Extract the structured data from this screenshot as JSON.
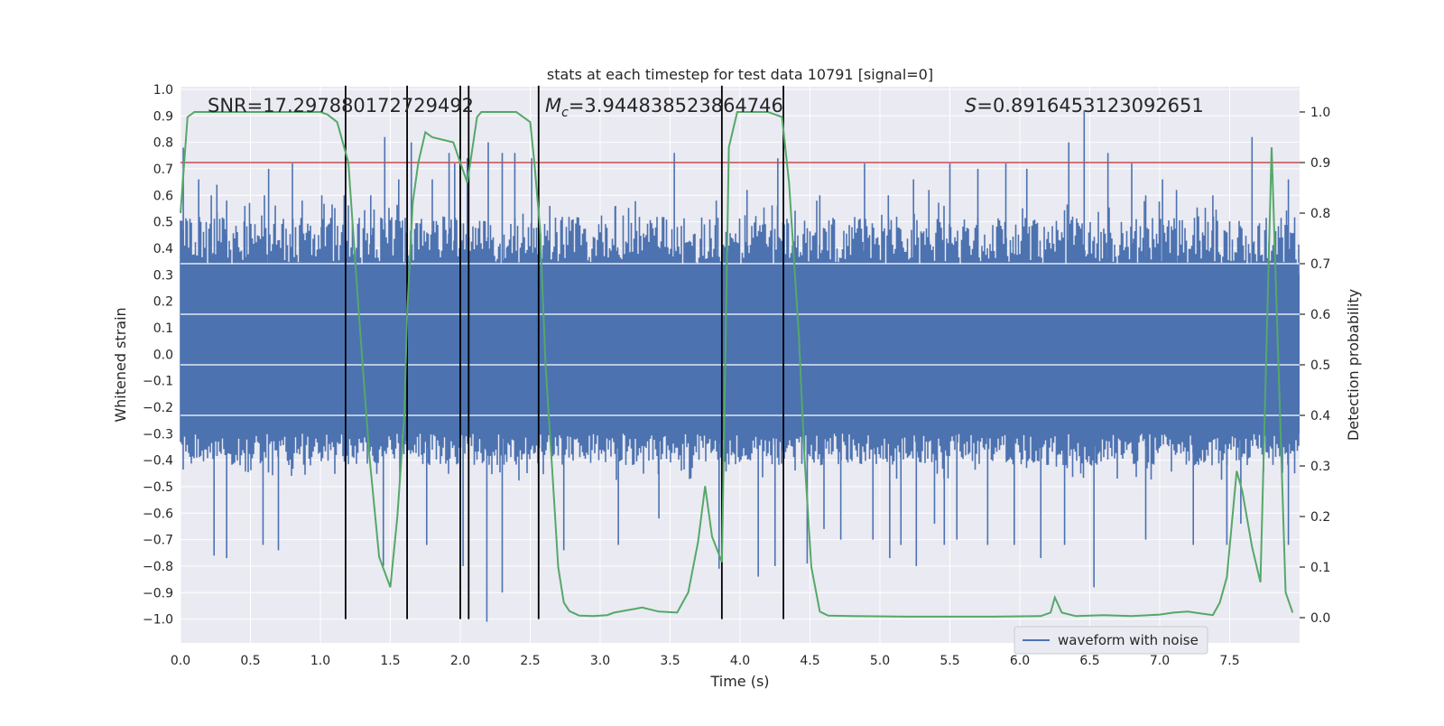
{
  "chart_data": {
    "type": "line",
    "title": "stats at each timestep for test data 10791 [signal=0]",
    "xlabel": "Time (s)",
    "ylabel": "Whitened strain",
    "y2label": "Detection probability",
    "xlim": [
      0.0,
      8.0
    ],
    "ylim": [
      -1.09,
      1.01
    ],
    "y2lim": [
      -0.05,
      1.05
    ],
    "xticks": [
      0.0,
      0.5,
      1.0,
      1.5,
      2.0,
      2.5,
      3.0,
      3.5,
      4.0,
      4.5,
      5.0,
      5.5,
      6.0,
      6.5,
      7.0,
      7.5
    ],
    "xtick_labels": [
      "0.0",
      "0.5",
      "1.0",
      "1.5",
      "2.0",
      "2.5",
      "3.0",
      "3.5",
      "4.0",
      "4.5",
      "5.0",
      "5.5",
      "6.0",
      "6.5",
      "7.0",
      "7.5"
    ],
    "yticks": [
      1.0,
      0.9,
      0.8,
      0.7,
      0.6,
      0.5,
      0.4,
      0.3,
      0.2,
      0.1,
      0.0,
      -0.1,
      -0.2,
      -0.3,
      -0.4,
      -0.5,
      -0.6,
      -0.7,
      -0.8,
      -0.9,
      -1.0
    ],
    "ytick_labels": [
      "1.0",
      "0.9",
      "0.8",
      "0.7",
      "0.6",
      "0.5",
      "0.4",
      "0.3",
      "0.2",
      "0.1",
      "0.0",
      "−0.1",
      "−0.2",
      "−0.3",
      "−0.4",
      "−0.5",
      "−0.6",
      "−0.7",
      "−0.8",
      "−0.9",
      "−1.0"
    ],
    "y2ticks": [
      1.0,
      0.9,
      0.8,
      0.7,
      0.6,
      0.5,
      0.4,
      0.3,
      0.2,
      0.1,
      0.0
    ],
    "y2tick_labels": [
      "1.0",
      "0.9",
      "0.8",
      "0.7",
      "0.6",
      "0.5",
      "0.4",
      "0.3",
      "0.2",
      "0.1",
      "0.0"
    ],
    "annotations": {
      "snr": "SNR=17.297880172729492",
      "mc_prefix": "M",
      "mc_sub": "c",
      "mc_value": "=3.944838523864746",
      "s_prefix": "S",
      "s_value": "=0.8916453123092651"
    },
    "legend": {
      "label": "waveform with noise",
      "placement": "lower-right"
    },
    "waveform": {
      "name": "waveform with noise",
      "color": "#4c72b0",
      "core_range": [
        -0.42,
        0.52
      ],
      "spikes_up": [
        [
          0.02,
          0.78
        ],
        [
          0.13,
          0.66
        ],
        [
          0.22,
          0.6
        ],
        [
          0.26,
          0.64
        ],
        [
          0.33,
          0.58
        ],
        [
          0.46,
          0.56
        ],
        [
          0.6,
          0.6
        ],
        [
          0.63,
          0.7
        ],
        [
          0.8,
          0.72
        ],
        [
          0.87,
          0.58
        ],
        [
          1.01,
          0.6
        ],
        [
          1.17,
          0.6
        ],
        [
          1.36,
          0.6
        ],
        [
          1.46,
          0.82
        ],
        [
          1.56,
          0.66
        ],
        [
          1.65,
          0.8
        ],
        [
          1.8,
          0.66
        ],
        [
          1.92,
          0.76
        ],
        [
          1.96,
          0.72
        ],
        [
          2.05,
          0.74
        ],
        [
          2.2,
          0.8
        ],
        [
          2.3,
          0.76
        ],
        [
          2.39,
          0.76
        ],
        [
          2.51,
          0.74
        ],
        [
          2.64,
          0.56
        ],
        [
          3.11,
          0.56
        ],
        [
          3.53,
          0.76
        ],
        [
          3.83,
          0.58
        ],
        [
          4.05,
          0.62
        ],
        [
          4.27,
          0.74
        ],
        [
          4.57,
          0.6
        ],
        [
          4.89,
          0.72
        ],
        [
          5.06,
          0.6
        ],
        [
          5.24,
          0.66
        ],
        [
          5.35,
          0.62
        ],
        [
          5.5,
          0.72
        ],
        [
          5.7,
          0.7
        ],
        [
          5.9,
          0.72
        ],
        [
          6.05,
          0.7
        ],
        [
          6.35,
          0.8
        ],
        [
          6.46,
          0.92
        ],
        [
          6.63,
          0.76
        ],
        [
          6.8,
          0.72
        ],
        [
          6.9,
          0.6
        ],
        [
          7.02,
          0.66
        ],
        [
          7.12,
          0.62
        ],
        [
          7.38,
          0.6
        ],
        [
          7.66,
          0.82
        ],
        [
          7.92,
          0.66
        ]
      ],
      "spikes_down": [
        [
          0.24,
          -0.76
        ],
        [
          0.33,
          -0.77
        ],
        [
          0.59,
          -0.72
        ],
        [
          0.7,
          -0.74
        ],
        [
          1.18,
          -0.72
        ],
        [
          1.45,
          -0.8
        ],
        [
          1.62,
          -0.74
        ],
        [
          1.76,
          -0.72
        ],
        [
          2.02,
          -0.8
        ],
        [
          2.19,
          -1.01
        ],
        [
          2.3,
          -0.9
        ],
        [
          2.56,
          -0.82
        ],
        [
          2.74,
          -0.74
        ],
        [
          3.13,
          -0.72
        ],
        [
          3.42,
          -0.62
        ],
        [
          3.85,
          -0.81
        ],
        [
          4.13,
          -0.84
        ],
        [
          4.25,
          -0.8
        ],
        [
          4.48,
          -0.79
        ],
        [
          4.6,
          -0.66
        ],
        [
          4.72,
          -0.7
        ],
        [
          4.95,
          -0.7
        ],
        [
          5.07,
          -0.77
        ],
        [
          5.15,
          -0.72
        ],
        [
          5.26,
          -0.8
        ],
        [
          5.39,
          -0.64
        ],
        [
          5.46,
          -0.72
        ],
        [
          5.55,
          -0.7
        ],
        [
          5.77,
          -0.72
        ],
        [
          5.96,
          -0.72
        ],
        [
          6.15,
          -0.77
        ],
        [
          6.32,
          -0.72
        ],
        [
          6.53,
          -0.88
        ],
        [
          6.9,
          -0.7
        ],
        [
          7.24,
          -0.72
        ],
        [
          7.48,
          -0.72
        ],
        [
          7.58,
          -0.64
        ],
        [
          7.92,
          -0.72
        ]
      ]
    },
    "threshold": {
      "y2": 0.9,
      "color": "#c44e52"
    },
    "probability": {
      "name": "Detection probability",
      "color": "#55a868",
      "x": [
        0.0,
        0.05,
        0.1,
        0.15,
        0.4,
        0.8,
        1.0,
        1.05,
        1.12,
        1.2,
        1.27,
        1.35,
        1.42,
        1.5,
        1.55,
        1.6,
        1.62,
        1.66,
        1.7,
        1.75,
        1.8,
        1.95,
        2.0,
        2.05,
        2.12,
        2.15,
        2.2,
        2.3,
        2.4,
        2.5,
        2.53,
        2.57,
        2.61,
        2.66,
        2.7,
        2.74,
        2.78,
        2.85,
        2.95,
        3.05,
        3.1,
        3.2,
        3.3,
        3.42,
        3.55,
        3.63,
        3.7,
        3.75,
        3.8,
        3.87,
        3.92,
        3.98,
        4.05,
        4.2,
        4.3,
        4.35,
        4.42,
        4.46,
        4.51,
        4.57,
        4.63,
        4.8,
        5.2,
        5.5,
        5.8,
        6.15,
        6.22,
        6.25,
        6.3,
        6.4,
        6.6,
        6.8,
        7.0,
        7.1,
        7.2,
        7.3,
        7.38,
        7.43,
        7.48,
        7.55,
        7.59,
        7.66,
        7.72,
        7.8,
        7.9,
        7.95
      ],
      "y": [
        0.8,
        0.99,
        1.0,
        1.0,
        1.0,
        1.0,
        1.0,
        0.995,
        0.98,
        0.9,
        0.62,
        0.32,
        0.12,
        0.06,
        0.2,
        0.4,
        0.6,
        0.82,
        0.9,
        0.96,
        0.95,
        0.94,
        0.9,
        0.86,
        0.99,
        1.0,
        1.0,
        1.0,
        1.0,
        0.98,
        0.9,
        0.77,
        0.5,
        0.28,
        0.1,
        0.03,
        0.013,
        0.004,
        0.003,
        0.005,
        0.01,
        0.015,
        0.02,
        0.012,
        0.01,
        0.05,
        0.15,
        0.26,
        0.16,
        0.11,
        0.93,
        1.0,
        1.0,
        1.0,
        0.99,
        0.86,
        0.56,
        0.32,
        0.1,
        0.012,
        0.004,
        0.003,
        0.002,
        0.002,
        0.002,
        0.003,
        0.01,
        0.04,
        0.01,
        0.003,
        0.005,
        0.003,
        0.006,
        0.01,
        0.012,
        0.008,
        0.005,
        0.03,
        0.08,
        0.29,
        0.25,
        0.14,
        0.07,
        0.93,
        0.05,
        0.01
      ]
    },
    "vlines": [
      1.18,
      1.62,
      2.0,
      2.06,
      2.56,
      3.87,
      4.31
    ]
  }
}
